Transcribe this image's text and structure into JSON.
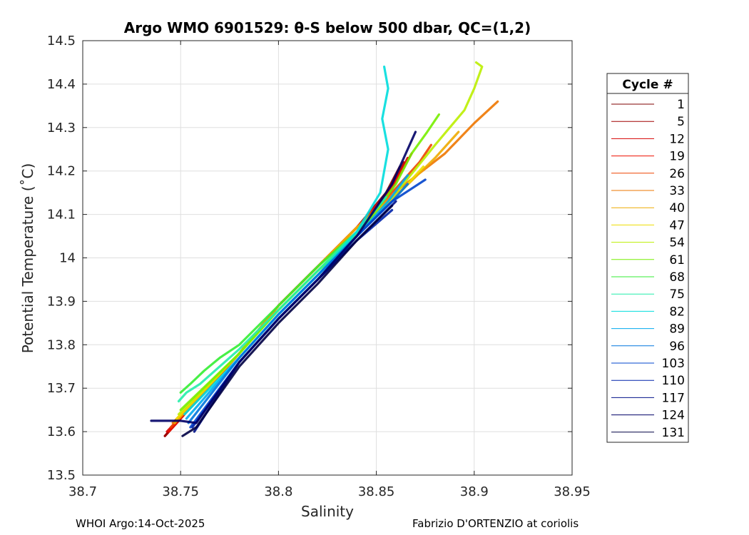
{
  "chart_data": {
    "type": "line",
    "title": "Argo WMO 6901529: θ-S below 500 dbar,  QC=(1,2)",
    "xlabel": "Salinity",
    "ylabel": "Potential Temperature (˚C)",
    "xlim": [
      38.7,
      38.95
    ],
    "ylim": [
      13.5,
      14.5
    ],
    "xticks": [
      38.7,
      38.75,
      38.8,
      38.85,
      38.9,
      38.95
    ],
    "xtick_labels": [
      "38.7",
      "38.75",
      "38.8",
      "38.85",
      "38.9",
      "38.95"
    ],
    "yticks": [
      13.5,
      13.6,
      13.7,
      13.8,
      13.9,
      14.0,
      14.1,
      14.2,
      14.3,
      14.4,
      14.5
    ],
    "ytick_labels": [
      "13.5",
      "13.6",
      "13.7",
      "13.8",
      "13.9",
      "14",
      "14.1",
      "14.2",
      "14.3",
      "14.4",
      "14.5"
    ],
    "grid": true,
    "legend_title": "Cycle #",
    "legend_position": "right-outside",
    "series": [
      {
        "name": "1",
        "color": "#7f0000",
        "x": [
          38.742,
          38.78,
          38.8,
          38.82,
          38.84,
          38.855,
          38.862
        ],
        "y": [
          13.59,
          13.78,
          13.89,
          13.98,
          14.07,
          14.15,
          14.21
        ]
      },
      {
        "name": "5",
        "color": "#a00000",
        "x": [
          38.742,
          38.78,
          38.8,
          38.82,
          38.84,
          38.856,
          38.864
        ],
        "y": [
          13.59,
          13.78,
          13.89,
          13.98,
          14.07,
          14.15,
          14.22
        ]
      },
      {
        "name": "12",
        "color": "#d40000",
        "x": [
          38.743,
          38.78,
          38.8,
          38.82,
          38.84,
          38.857,
          38.866
        ],
        "y": [
          13.6,
          13.78,
          13.89,
          13.98,
          14.07,
          14.15,
          14.23
        ]
      },
      {
        "name": "19",
        "color": "#ee1100",
        "x": [
          38.744,
          38.78,
          38.8,
          38.82,
          38.84,
          38.858,
          38.868
        ],
        "y": [
          13.6,
          13.78,
          13.89,
          13.98,
          14.07,
          14.16,
          14.24
        ]
      },
      {
        "name": "26",
        "color": "#ee4400",
        "x": [
          38.745,
          38.78,
          38.8,
          38.82,
          38.84,
          38.86,
          38.872,
          38.878
        ],
        "y": [
          13.61,
          13.78,
          13.89,
          13.98,
          14.07,
          14.16,
          14.22,
          14.26
        ]
      },
      {
        "name": "33",
        "color": "#ee7700",
        "x": [
          38.746,
          38.78,
          38.8,
          38.82,
          38.84,
          38.862,
          38.885,
          38.9,
          38.912
        ],
        "y": [
          13.62,
          13.78,
          13.89,
          13.98,
          14.07,
          14.16,
          14.24,
          14.31,
          14.36
        ]
      },
      {
        "name": "40",
        "color": "#eeaa00",
        "x": [
          38.747,
          38.78,
          38.8,
          38.82,
          38.84,
          38.864,
          38.88,
          38.892
        ],
        "y": [
          13.62,
          13.78,
          13.89,
          13.98,
          14.07,
          14.16,
          14.23,
          14.29
        ]
      },
      {
        "name": "47",
        "color": "#eedd00",
        "x": [
          38.748,
          38.78,
          38.8,
          38.82,
          38.84,
          38.862,
          38.874
        ],
        "y": [
          13.63,
          13.78,
          13.88,
          13.97,
          14.06,
          14.15,
          14.21
        ]
      },
      {
        "name": "54",
        "color": "#bbee00",
        "x": [
          38.749,
          38.78,
          38.8,
          38.82,
          38.842,
          38.862,
          38.88,
          38.895,
          38.9,
          38.904,
          38.901
        ],
        "y": [
          13.64,
          13.78,
          13.88,
          13.97,
          14.06,
          14.16,
          14.26,
          14.34,
          14.39,
          14.44,
          14.45
        ]
      },
      {
        "name": "61",
        "color": "#77ee00",
        "x": [
          38.75,
          38.78,
          38.8,
          38.82,
          38.842,
          38.86,
          38.868,
          38.876,
          38.882
        ],
        "y": [
          13.65,
          13.78,
          13.88,
          13.97,
          14.06,
          14.17,
          14.24,
          14.29,
          14.33
        ]
      },
      {
        "name": "68",
        "color": "#33ee33",
        "x": [
          38.75,
          38.755,
          38.762,
          38.77,
          38.78,
          38.8,
          38.82,
          38.84
        ],
        "y": [
          13.69,
          13.71,
          13.74,
          13.77,
          13.8,
          13.89,
          13.98,
          14.06
        ]
      },
      {
        "name": "75",
        "color": "#22eeaa",
        "x": [
          38.749,
          38.753,
          38.76,
          38.78,
          38.8,
          38.82,
          38.84,
          38.855
        ],
        "y": [
          13.67,
          13.69,
          13.71,
          13.79,
          13.88,
          13.97,
          14.06,
          14.14
        ]
      },
      {
        "name": "82",
        "color": "#00dddd",
        "x": [
          38.752,
          38.78,
          38.8,
          38.82,
          38.84,
          38.852,
          38.856,
          38.853,
          38.856,
          38.854
        ],
        "y": [
          13.64,
          13.77,
          13.87,
          13.96,
          14.06,
          14.15,
          14.25,
          14.32,
          14.39,
          14.44
        ]
      },
      {
        "name": "89",
        "color": "#00aaee",
        "x": [
          38.753,
          38.78,
          38.8,
          38.82,
          38.84,
          38.856,
          38.866
        ],
        "y": [
          13.63,
          13.77,
          13.87,
          13.96,
          14.05,
          14.13,
          14.19
        ]
      },
      {
        "name": "96",
        "color": "#0077dd",
        "x": [
          38.754,
          38.78,
          38.8,
          38.82,
          38.84,
          38.858,
          38.866
        ],
        "y": [
          13.62,
          13.77,
          13.87,
          13.96,
          14.05,
          14.13,
          14.17
        ]
      },
      {
        "name": "103",
        "color": "#0044cc",
        "x": [
          38.755,
          38.78,
          38.8,
          38.82,
          38.84,
          38.858,
          38.875
        ],
        "y": [
          13.61,
          13.76,
          13.86,
          13.95,
          14.05,
          14.13,
          14.18
        ]
      },
      {
        "name": "110",
        "color": "#0022aa",
        "x": [
          38.756,
          38.78,
          38.8,
          38.82,
          38.84,
          38.858
        ],
        "y": [
          13.61,
          13.76,
          13.86,
          13.95,
          14.04,
          14.11
        ]
      },
      {
        "name": "117",
        "color": "#001188",
        "x": [
          38.757,
          38.78,
          38.8,
          38.82,
          38.84,
          38.86
        ],
        "y": [
          13.6,
          13.76,
          13.86,
          13.95,
          14.04,
          14.13
        ]
      },
      {
        "name": "124",
        "color": "#000066",
        "x": [
          38.735,
          38.75,
          38.758,
          38.78,
          38.8,
          38.82,
          38.84,
          38.858,
          38.87
        ],
        "y": [
          13.625,
          13.625,
          13.62,
          13.76,
          13.86,
          13.95,
          14.05,
          14.17,
          14.29
        ]
      },
      {
        "name": "131",
        "color": "#000044",
        "x": [
          38.751,
          38.758,
          38.78,
          38.8,
          38.82,
          38.84,
          38.858
        ],
        "y": [
          13.59,
          13.61,
          13.75,
          13.85,
          13.94,
          14.04,
          14.12
        ]
      }
    ]
  },
  "footer": {
    "left": "WHOI Argo:14-Oct-2025",
    "right": "Fabrizio D'ORTENZIO at coriolis"
  }
}
